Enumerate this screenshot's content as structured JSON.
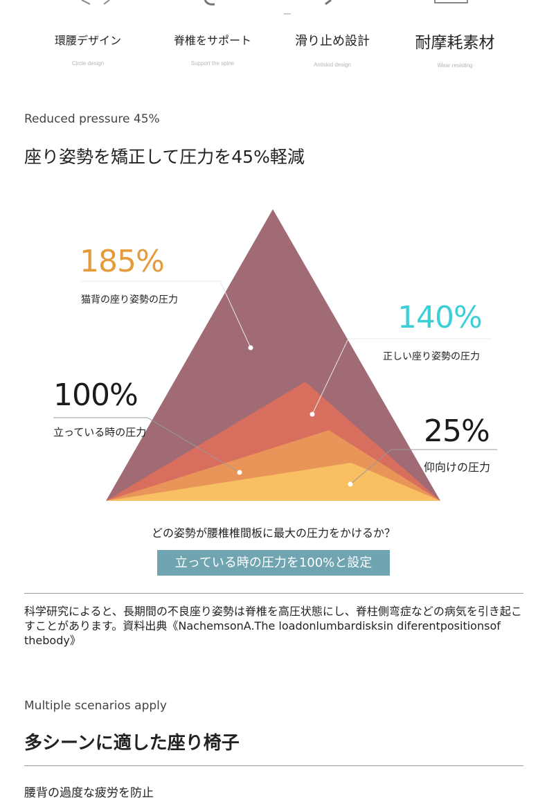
{
  "features": [
    {
      "jp": "環腰デザイン",
      "en": "Circle design"
    },
    {
      "jp": "脊椎をサポート",
      "en": "Support the spine"
    },
    {
      "jp": "滑り止め設計",
      "en": "Antiskid design"
    },
    {
      "jp": "耐摩耗素材",
      "en": "Wear resisting"
    }
  ],
  "section1": {
    "subtitle": "Reduced pressure 45%",
    "title": "座り姿勢を矯正して圧力を45%軽減"
  },
  "chart_data": {
    "type": "other",
    "layers": [
      {
        "value": "185%",
        "label": "猫背の座り姿勢の圧力",
        "color": "#a06b74"
      },
      {
        "value": "140%",
        "label": "正しい座り姿勢の圧力",
        "color": "#d86e5e"
      },
      {
        "value": "100%",
        "label": "立っている時の圧力",
        "color": "#e9955a"
      },
      {
        "value": "25%",
        "label": "仰向けの圧力",
        "color": "#f8bf63"
      }
    ],
    "label_colors": {
      "185%": "#e59a3b",
      "140%": "#3ccfd6",
      "100%": "#1b1b1b",
      "25%": "#1b1b1b"
    }
  },
  "question": "どの姿勢が腰椎椎間板に最大の圧力をかけるか？",
  "answer": "立っている時の圧力を100%と設定",
  "note": "科学研究によると、長期間の不良座り姿勢は脊椎を高圧状態にし、脊柱側弯症などの病気を引き起こすことがあります。資料出典《NachemsonA.The loadonlumbardisksin diferentpositionsof thebody》",
  "section2": {
    "subtitle": "Multiple scenarios apply",
    "title": "多シーンに適した座り椅子"
  },
  "bottom_text": "腰背の過度な疲労を防止"
}
